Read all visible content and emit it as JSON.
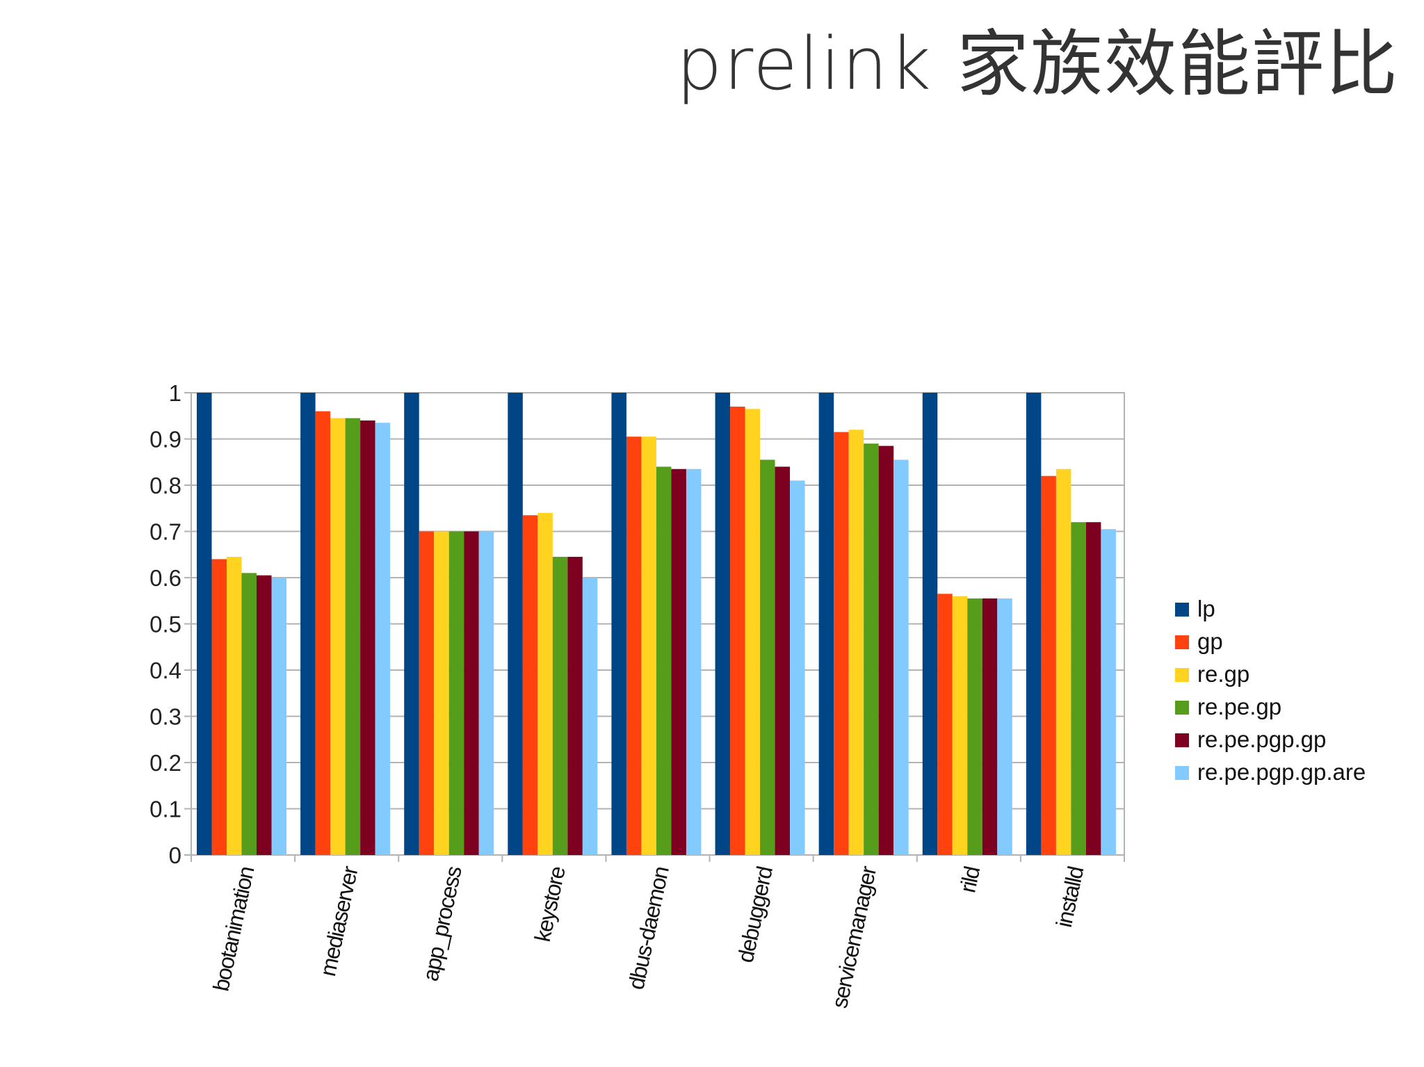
{
  "slide": {
    "title": "prelink 家族效能評比"
  },
  "chart_data": {
    "type": "bar",
    "categories": [
      "bootanimation",
      "mediaserver",
      "app_process",
      "keystore",
      "dbus-daemon",
      "debuggerd",
      "servicemanager",
      "rild",
      "installd"
    ],
    "series": [
      {
        "name": "lp",
        "color": "#004586",
        "values": [
          1,
          1,
          1,
          1,
          1,
          1,
          1,
          1,
          1
        ]
      },
      {
        "name": "gp",
        "color": "#ff420e",
        "values": [
          0.64,
          0.96,
          0.7,
          0.735,
          0.905,
          0.97,
          0.915,
          0.565,
          0.82
        ]
      },
      {
        "name": "re.gp",
        "color": "#ffd320",
        "values": [
          0.645,
          0.945,
          0.7,
          0.74,
          0.905,
          0.965,
          0.92,
          0.56,
          0.835
        ]
      },
      {
        "name": "re.pe.gp",
        "color": "#579d1c",
        "values": [
          0.61,
          0.945,
          0.7,
          0.645,
          0.84,
          0.855,
          0.89,
          0.555,
          0.72
        ]
      },
      {
        "name": "re.pe.pgp.gp",
        "color": "#7e0021",
        "values": [
          0.605,
          0.94,
          0.7,
          0.645,
          0.835,
          0.84,
          0.885,
          0.555,
          0.72
        ]
      },
      {
        "name": "re.pe.pgp.gp.are",
        "color": "#83caff",
        "values": [
          0.6,
          0.935,
          0.7,
          0.6,
          0.835,
          0.81,
          0.855,
          0.555,
          0.705
        ]
      }
    ],
    "yticks": [
      "0",
      "0.1",
      "0.2",
      "0.3",
      "0.4",
      "0.5",
      "0.6",
      "0.7",
      "0.8",
      "0.9",
      "1"
    ],
    "ylim": [
      0,
      1
    ],
    "grid": true,
    "legend_position": "right"
  }
}
